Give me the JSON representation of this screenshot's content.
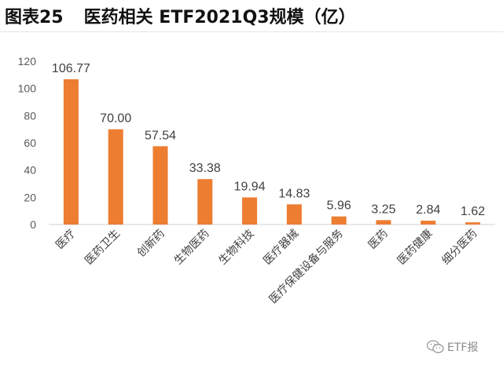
{
  "header": {
    "figure_label": "图表25",
    "title": "医药相关 ETF2021Q3规模（亿）"
  },
  "watermark": {
    "icon": "wechat-icon",
    "text": "ETF报"
  },
  "chart_data": {
    "type": "bar",
    "title": "医药相关 ETF2021Q3规模（亿）",
    "xlabel": "",
    "ylabel": "",
    "ylim": [
      0,
      120
    ],
    "yticks": [
      0,
      20,
      40,
      60,
      80,
      100,
      120
    ],
    "grid": false,
    "bar_color": "#ED7D31",
    "categories": [
      "医疗",
      "医药卫生",
      "创新药",
      "生物医药",
      "生物科技",
      "医疗器械",
      "医疗保健设备与服务",
      "医药",
      "医药健康",
      "细分医药"
    ],
    "values": [
      106.77,
      70.0,
      57.54,
      33.38,
      19.94,
      14.83,
      5.96,
      3.25,
      2.84,
      1.62
    ],
    "value_labels": [
      "106.77",
      "70.00",
      "57.54",
      "33.38",
      "19.94",
      "14.83",
      "5.96",
      "3.25",
      "2.84",
      "1.62"
    ]
  }
}
